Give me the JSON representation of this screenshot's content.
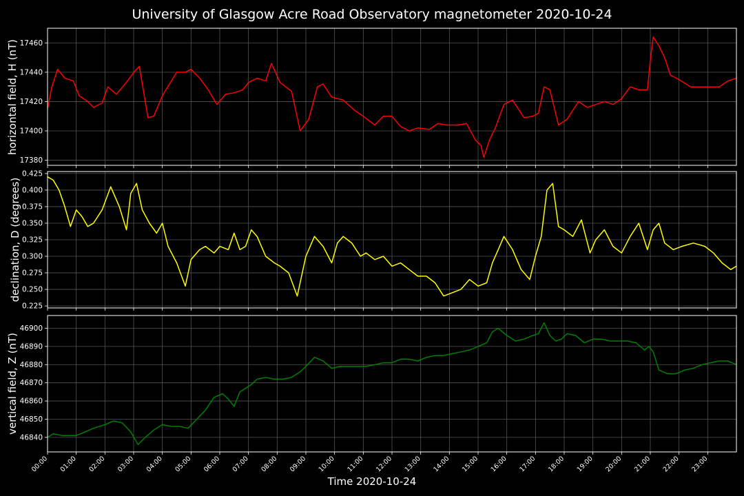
{
  "chart_data": {
    "title": "University of Glasgow Acre Road Observatory magnetometer 2020-10-24",
    "xlabel": "Time 2020-10-24",
    "type": "line",
    "grid": true,
    "x_ticks": [
      "00:00",
      "01:00",
      "02:00",
      "03:00",
      "04:00",
      "05:00",
      "06:00",
      "07:00",
      "08:00",
      "09:00",
      "10:00",
      "11:00",
      "12:00",
      "13:00",
      "14:00",
      "15:00",
      "16:00",
      "17:00",
      "18:00",
      "19:00",
      "20:00",
      "21:00",
      "22:00",
      "23:00"
    ],
    "xlim": [
      0,
      24
    ],
    "panels": [
      {
        "ylabel": "horizontal field, H (nT)",
        "color": "#ff0000",
        "ylim": [
          17376.5,
          17470
        ],
        "y_ticks": [
          17380,
          17400,
          17420,
          17440,
          17460
        ],
        "y_tick_labels": [
          "17380",
          "17400",
          "17420",
          "17440",
          "17460"
        ],
        "series": {
          "x": [
            0,
            0.15,
            0.35,
            0.6,
            0.9,
            1.1,
            1.4,
            1.6,
            1.9,
            2.1,
            2.4,
            2.7,
            2.9,
            3.05,
            3.2,
            3.5,
            3.7,
            4.0,
            4.5,
            4.8,
            5.0,
            5.3,
            5.6,
            5.9,
            6.2,
            6.5,
            6.8,
            7.0,
            7.3,
            7.6,
            7.8,
            8.1,
            8.5,
            8.8,
            9.1,
            9.4,
            9.6,
            9.9,
            10.3,
            10.7,
            11.0,
            11.4,
            11.7,
            12.0,
            12.3,
            12.6,
            12.9,
            13.3,
            13.6,
            13.9,
            14.3,
            14.6,
            14.9,
            15.1,
            15.2,
            15.4,
            15.6,
            15.9,
            16.2,
            16.6,
            16.9,
            17.1,
            17.3,
            17.5,
            17.8,
            18.1,
            18.5,
            18.8,
            19.1,
            19.4,
            19.7,
            20.0,
            20.3,
            20.6,
            20.9,
            21.0,
            21.1,
            21.3,
            21.5,
            21.7,
            22.0,
            22.4,
            22.8,
            23.1,
            23.4,
            23.7,
            24.0
          ],
          "values": [
            17415,
            17430,
            17442,
            17436,
            17434,
            17424,
            17420,
            17416,
            17419,
            17430,
            17425,
            17432,
            17437,
            17441,
            17444,
            17409,
            17410,
            17424,
            17440,
            17440,
            17442,
            17436,
            17428,
            17418,
            17425,
            17426,
            17428,
            17433,
            17436,
            17434,
            17446,
            17433,
            17427,
            17400,
            17408,
            17430,
            17432,
            17423,
            17421,
            17414,
            17410,
            17404,
            17410,
            17410,
            17403,
            17400,
            17402,
            17401,
            17405,
            17404,
            17404,
            17405,
            17394,
            17390,
            17382,
            17394,
            17402,
            17418,
            17421,
            17409,
            17410,
            17412,
            17430,
            17428,
            17404,
            17408,
            17420,
            17416,
            17418,
            17420,
            17418,
            17422,
            17430,
            17428,
            17428,
            17448,
            17464,
            17458,
            17450,
            17438,
            17435,
            17430,
            17430,
            17430,
            17430,
            17434,
            17436
          ]
        }
      },
      {
        "ylabel": "declination, D (degrees)",
        "color": "#ffff00",
        "ylim": [
          0.222,
          0.428
        ],
        "y_ticks": [
          0.225,
          0.25,
          0.275,
          0.3,
          0.325,
          0.35,
          0.375,
          0.4,
          0.425
        ],
        "y_tick_labels": [
          "0.225",
          "0.250",
          "0.275",
          "0.300",
          "0.325",
          "0.350",
          "0.375",
          "0.400",
          "0.425"
        ],
        "series": {
          "x": [
            0,
            0.2,
            0.4,
            0.6,
            0.8,
            1.0,
            1.2,
            1.4,
            1.6,
            1.9,
            2.2,
            2.5,
            2.75,
            2.9,
            3.1,
            3.3,
            3.55,
            3.8,
            4.0,
            4.2,
            4.5,
            4.8,
            5.0,
            5.3,
            5.5,
            5.8,
            6.0,
            6.3,
            6.5,
            6.7,
            6.9,
            7.1,
            7.3,
            7.6,
            7.9,
            8.1,
            8.4,
            8.7,
            9.0,
            9.3,
            9.6,
            9.9,
            10.1,
            10.3,
            10.6,
            10.9,
            11.1,
            11.4,
            11.7,
            12.0,
            12.3,
            12.6,
            12.9,
            13.2,
            13.5,
            13.8,
            14.1,
            14.4,
            14.7,
            15.0,
            15.3,
            15.5,
            15.7,
            15.9,
            16.2,
            16.5,
            16.8,
            17.0,
            17.2,
            17.4,
            17.6,
            17.8,
            18.0,
            18.3,
            18.6,
            18.9,
            19.1,
            19.4,
            19.7,
            20.0,
            20.3,
            20.6,
            20.9,
            21.1,
            21.3,
            21.5,
            21.8,
            22.1,
            22.5,
            22.9,
            23.2,
            23.5,
            23.8,
            24.0
          ],
          "values": [
            0.42,
            0.415,
            0.4,
            0.375,
            0.345,
            0.37,
            0.36,
            0.345,
            0.35,
            0.37,
            0.405,
            0.375,
            0.34,
            0.395,
            0.41,
            0.37,
            0.35,
            0.335,
            0.35,
            0.315,
            0.29,
            0.255,
            0.295,
            0.31,
            0.315,
            0.305,
            0.315,
            0.31,
            0.335,
            0.31,
            0.315,
            0.34,
            0.33,
            0.3,
            0.29,
            0.285,
            0.275,
            0.24,
            0.3,
            0.33,
            0.315,
            0.29,
            0.32,
            0.33,
            0.32,
            0.3,
            0.305,
            0.295,
            0.3,
            0.285,
            0.29,
            0.28,
            0.27,
            0.27,
            0.26,
            0.24,
            0.245,
            0.25,
            0.265,
            0.255,
            0.26,
            0.29,
            0.31,
            0.33,
            0.31,
            0.28,
            0.265,
            0.3,
            0.33,
            0.4,
            0.41,
            0.345,
            0.34,
            0.33,
            0.355,
            0.305,
            0.325,
            0.34,
            0.315,
            0.305,
            0.33,
            0.35,
            0.31,
            0.34,
            0.35,
            0.32,
            0.31,
            0.315,
            0.32,
            0.315,
            0.305,
            0.29,
            0.28,
            0.285
          ]
        }
      },
      {
        "ylabel": "vertical field, Z (nT)",
        "color": "#008000",
        "ylim": [
          46832,
          46907
        ],
        "y_ticks": [
          46840,
          46850,
          46860,
          46870,
          46880,
          46890,
          46900
        ],
        "y_tick_labels": [
          "46840",
          "46850",
          "46860",
          "46870",
          "46880",
          "46890",
          "46900"
        ],
        "series": {
          "x": [
            0,
            0.2,
            0.5,
            0.8,
            1.0,
            1.3,
            1.6,
            2.0,
            2.3,
            2.6,
            2.9,
            3.15,
            3.4,
            3.7,
            4.0,
            4.3,
            4.6,
            4.9,
            5.2,
            5.5,
            5.8,
            6.1,
            6.3,
            6.5,
            6.7,
            6.9,
            7.1,
            7.3,
            7.6,
            7.9,
            8.2,
            8.5,
            8.8,
            9.0,
            9.3,
            9.6,
            9.9,
            10.2,
            10.5,
            10.8,
            11.1,
            11.4,
            11.7,
            12.0,
            12.3,
            12.6,
            12.9,
            13.2,
            13.5,
            13.8,
            14.1,
            14.4,
            14.7,
            15.0,
            15.3,
            15.5,
            15.7,
            16.0,
            16.3,
            16.6,
            16.9,
            17.1,
            17.3,
            17.5,
            17.7,
            17.9,
            18.1,
            18.4,
            18.7,
            19.0,
            19.3,
            19.6,
            19.9,
            20.2,
            20.5,
            20.8,
            20.95,
            21.1,
            21.3,
            21.6,
            21.9,
            22.2,
            22.5,
            22.8,
            23.1,
            23.4,
            23.7,
            24.0
          ],
          "values": [
            46840,
            46842,
            46841,
            46841,
            46841,
            46843,
            46845,
            46847,
            46849,
            46848,
            46843,
            46836,
            46840,
            46844,
            46847,
            46846,
            46846,
            46845,
            46850,
            46855,
            46862,
            46864,
            46861,
            46857,
            46865,
            46867,
            46869,
            46872,
            46873,
            46872,
            46872,
            46873,
            46876,
            46879,
            46884,
            46882,
            46878,
            46879,
            46879,
            46879,
            46879,
            46880,
            46881,
            46881,
            46883,
            46883,
            46882,
            46884,
            46885,
            46885,
            46886,
            46887,
            46888,
            46890,
            46892,
            46898,
            46900,
            46896,
            46893,
            46894,
            46896,
            46897,
            46903,
            46896,
            46893,
            46894,
            46897,
            46896,
            46892,
            46894,
            46894,
            46893,
            46893,
            46893,
            46892,
            46888,
            46890,
            46887,
            46877,
            46875,
            46875,
            46877,
            46878,
            46880,
            46881,
            46882,
            46882,
            46880
          ]
        }
      }
    ]
  }
}
